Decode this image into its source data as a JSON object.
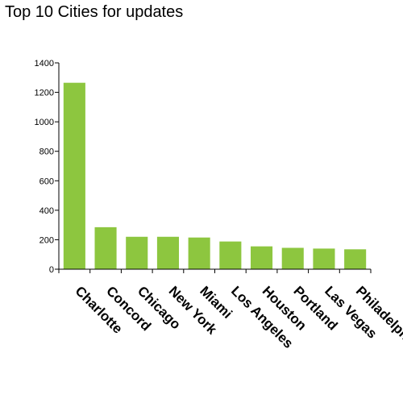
{
  "chart_data": {
    "type": "bar",
    "title": "Top 10 Cities for updates",
    "categories": [
      "Charlotte",
      "Concord",
      "Chicago",
      "New York",
      "Miami",
      "Los Angeles",
      "Houston",
      "Portland",
      "Las Vegas",
      "Philadelphia"
    ],
    "values": [
      1265,
      285,
      220,
      220,
      215,
      188,
      155,
      145,
      140,
      135
    ],
    "xlabel": "",
    "ylabel": "",
    "ylim": [
      0,
      1400
    ],
    "yticks": [
      0,
      200,
      400,
      600,
      800,
      1000,
      1200,
      1400
    ],
    "grid": false,
    "legend": "none",
    "bar_color": "#8dc63f"
  }
}
